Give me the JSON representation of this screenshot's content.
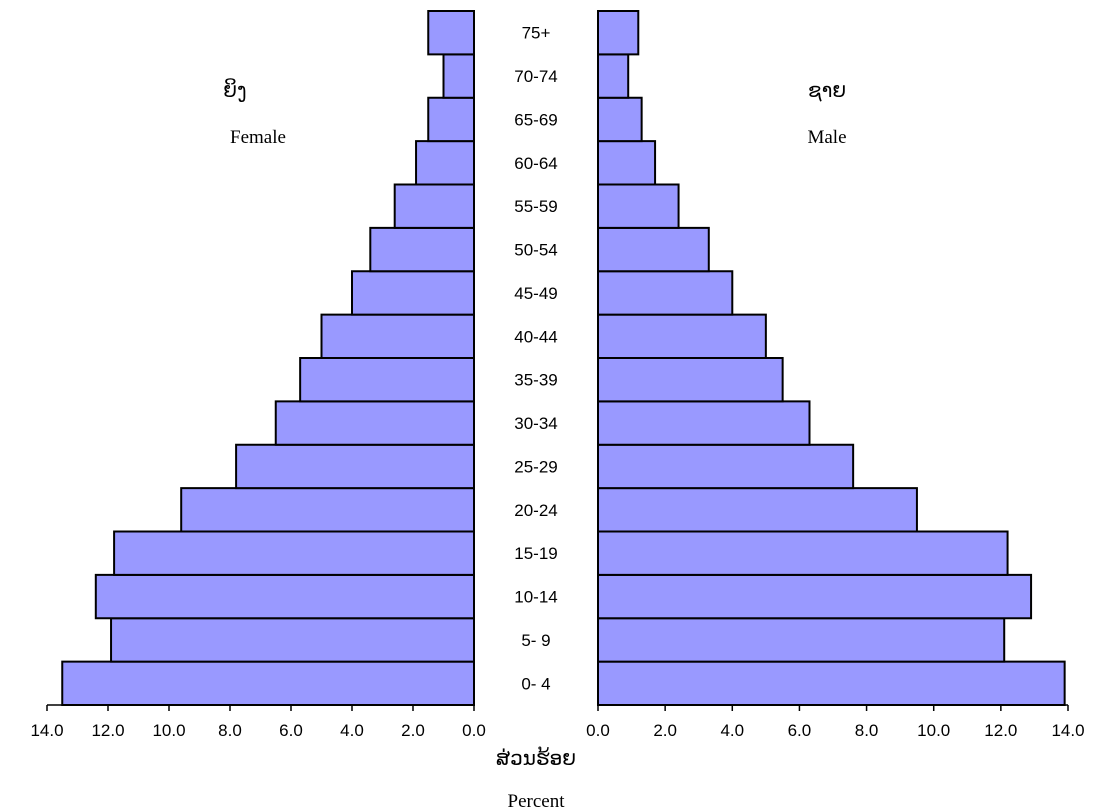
{
  "chart_data": {
    "type": "bar",
    "orientation": "horizontal-population-pyramid",
    "categories": [
      "0- 4",
      "5- 9",
      "10-14",
      "15-19",
      "20-24",
      "25-29",
      "30-34",
      "35-39",
      "40-44",
      "45-49",
      "50-54",
      "55-59",
      "60-64",
      "65-69",
      "70-74",
      "75+"
    ],
    "female": {
      "label_lao": "ຍິງ",
      "label": "Female",
      "values": [
        13.5,
        11.9,
        12.4,
        11.8,
        9.6,
        7.8,
        6.5,
        5.7,
        5.0,
        4.0,
        3.4,
        2.6,
        1.9,
        1.5,
        1.0,
        1.5
      ]
    },
    "male": {
      "label_lao": "ຊາຍ",
      "label": "Male",
      "values": [
        13.9,
        12.1,
        12.9,
        12.2,
        9.5,
        7.6,
        6.3,
        5.5,
        5.0,
        4.0,
        3.3,
        2.4,
        1.7,
        1.3,
        0.9,
        1.2
      ]
    },
    "xlim": [
      0,
      14
    ],
    "xticks": [
      "0.0",
      "2.0",
      "4.0",
      "6.0",
      "8.0",
      "10.0",
      "12.0",
      "14.0"
    ],
    "xlabel_lao": "ສ່ວນຮ້ອຍ",
    "xlabel": "Percent",
    "bar_color": "#9999ff",
    "edge_color": "#000000",
    "grid": false
  }
}
